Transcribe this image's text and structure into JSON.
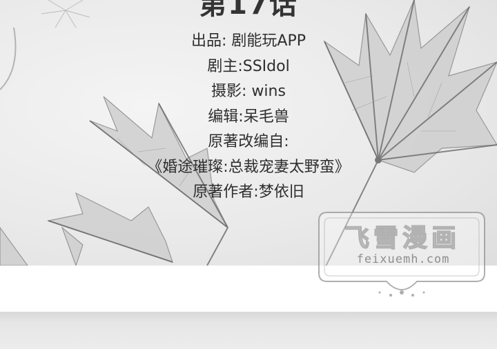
{
  "title_fragment": "第17话",
  "credits": [
    "出品: 剧能玩APP",
    "剧主:SSIdol",
    "摄影: wins",
    "编辑:呆毛兽",
    "原著改编自:",
    "《婚途璀璨:总裁宠妻太野蛮》",
    "原著作者:梦依旧"
  ],
  "watermark": {
    "title": "飞雪漫画",
    "url": "feixuemh.com"
  }
}
